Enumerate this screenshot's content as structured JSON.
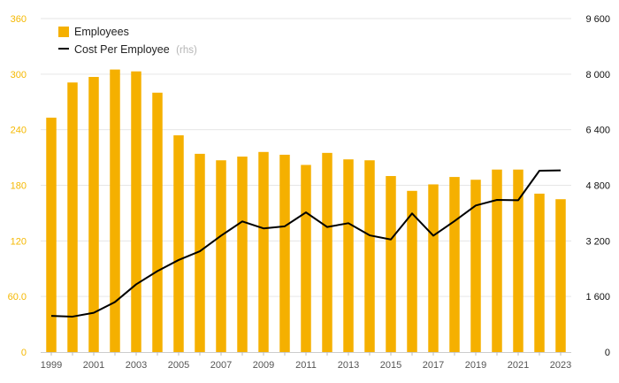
{
  "chart_data": {
    "type": "bar",
    "categories": [
      "1999",
      "2000",
      "2001",
      "2002",
      "2003",
      "2004",
      "2005",
      "2006",
      "2007",
      "2008",
      "2009",
      "2010",
      "2011",
      "2012",
      "2013",
      "2014",
      "2015",
      "2016",
      "2017",
      "2018",
      "2019",
      "2020",
      "2021",
      "2022",
      "2023"
    ],
    "x_tick_labels": [
      "1999",
      "2001",
      "2003",
      "2005",
      "2007",
      "2009",
      "2011",
      "2013",
      "2015",
      "2017",
      "2019",
      "2021",
      "2023"
    ],
    "series": [
      {
        "name": "Employees",
        "type": "bar",
        "axis": "left",
        "color": "#f5b000",
        "values": [
          253,
          291,
          297,
          305,
          303,
          280,
          234,
          214,
          207,
          211,
          216,
          213,
          202,
          215,
          208,
          207,
          190,
          174,
          181,
          189,
          186,
          197,
          197,
          171,
          165
        ]
      },
      {
        "name": "Cost Per Employee",
        "type": "line",
        "axis": "right",
        "color": "#000000",
        "values": [
          1040,
          1020,
          1130,
          1440,
          1950,
          2330,
          2650,
          2900,
          3350,
          3760,
          3560,
          3620,
          4020,
          3600,
          3710,
          3360,
          3240,
          3990,
          3350,
          3770,
          4220,
          4380,
          4370,
          5220,
          5230
        ]
      }
    ],
    "legend": {
      "placement": "top-left",
      "items": [
        {
          "label": "Employees",
          "note": "",
          "color": "#f5b000",
          "marker": "square"
        },
        {
          "label": "Cost Per Employee",
          "note": "(rhs)",
          "color": "#000000",
          "marker": "line"
        }
      ]
    },
    "y_left": {
      "ylim": [
        0,
        360
      ],
      "ticks": [
        0,
        60,
        120,
        180,
        240,
        300,
        360
      ],
      "tick_labels": [
        "0",
        "60.0",
        "120",
        "180",
        "240",
        "300",
        "360"
      ],
      "color": "#f5b800"
    },
    "y_right": {
      "ylim": [
        0,
        9600
      ],
      "ticks": [
        0,
        1600,
        3200,
        4800,
        6400,
        8000,
        9600
      ],
      "tick_labels": [
        "0",
        "1 600",
        "3 200",
        "4 800",
        "6 400",
        "8 000",
        "9 600"
      ],
      "color": "#111111"
    },
    "grid": true
  }
}
